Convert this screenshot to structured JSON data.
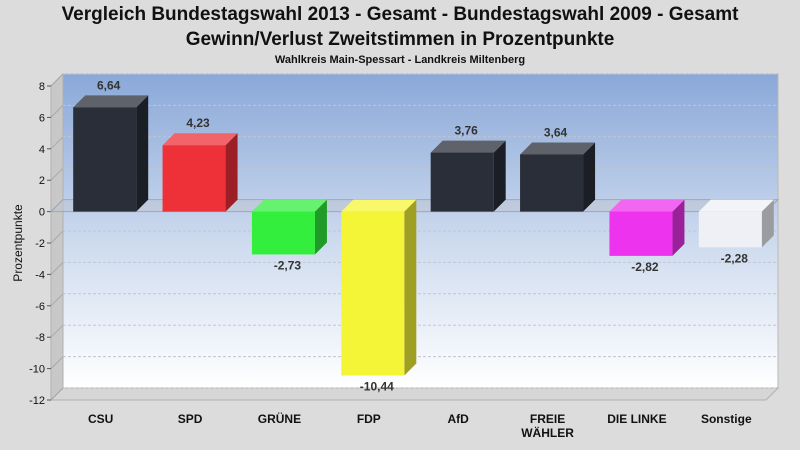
{
  "header": {
    "title_line1": "Vergleich Bundestagswahl 2013 - Gesamt - Bundestagswahl 2009 - Gesamt",
    "title_line2": "Gewinn/Verlust Zweitstimmen in Prozentpunkte",
    "subtitle": "Wahlkreis Main-Spessart - Landkreis Miltenberg"
  },
  "chart_data": {
    "type": "bar",
    "title": "Vergleich Bundestagswahl 2013 - Gesamt - Bundestagswahl 2009 - Gesamt",
    "subtitle": "Gewinn/Verlust Zweitstimmen in Prozentpunkte",
    "ylabel": "Prozentpunkte",
    "xlabel": "",
    "ylim": [
      -12,
      8
    ],
    "yticks": [
      8,
      6,
      4,
      2,
      0,
      -2,
      -4,
      -6,
      -8,
      -10,
      -12
    ],
    "grid": true,
    "categories": [
      "CSU",
      "SPD",
      "GRÜNE",
      "FDP",
      "AfD",
      "FREIE WÄHLER",
      "DIE LINKE",
      "Sonstige"
    ],
    "category_lines": [
      [
        "CSU"
      ],
      [
        "SPD"
      ],
      [
        "GRÜNE"
      ],
      [
        "FDP"
      ],
      [
        "AfD"
      ],
      [
        "FREIE",
        "WÄHLER"
      ],
      [
        "DIE LINKE"
      ],
      [
        "Sonstige"
      ]
    ],
    "values": [
      6.64,
      4.23,
      -2.73,
      -10.44,
      3.76,
      3.64,
      -2.82,
      -2.28
    ],
    "value_labels": [
      "6,64",
      "4,23",
      "-2,73",
      "-10,44",
      "3,76",
      "3,64",
      "-2,82",
      "-2,28"
    ],
    "colors": [
      "#2a2e38",
      "#ee3038",
      "#33ee3d",
      "#f5f538",
      "#2a2e38",
      "#2a2e38",
      "#ee33ee",
      "#eef0f6"
    ]
  }
}
